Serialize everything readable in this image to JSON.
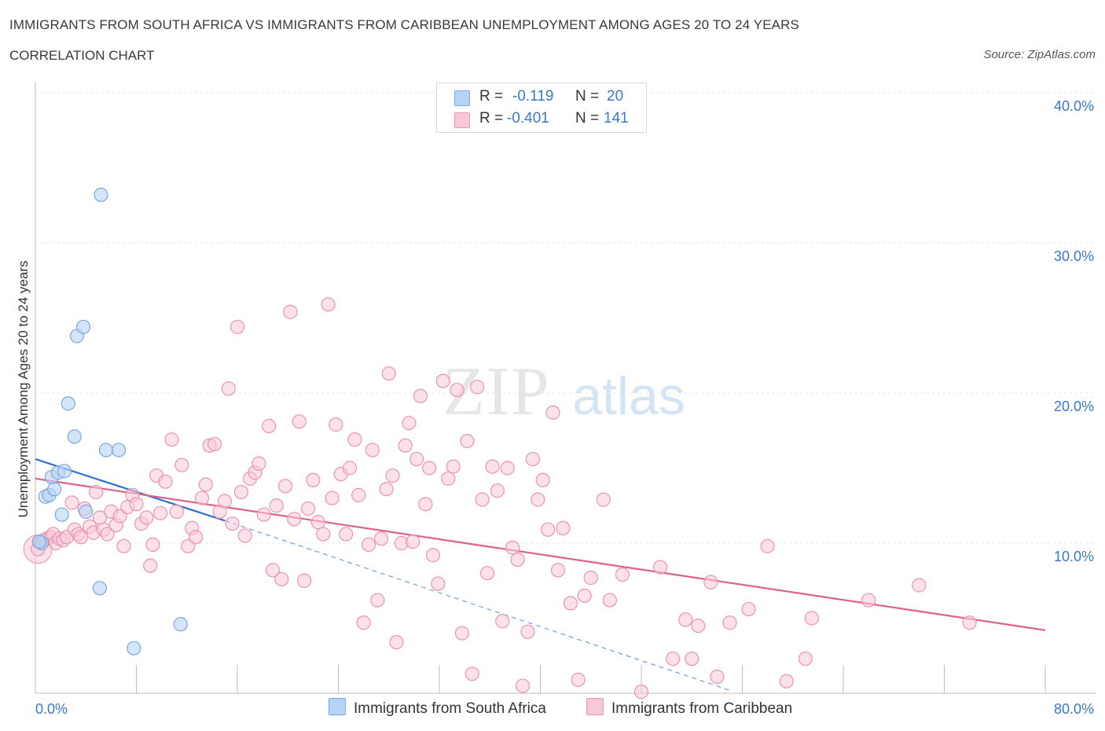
{
  "header": {
    "title": "IMMIGRANTS FROM SOUTH AFRICA VS IMMIGRANTS FROM CARIBBEAN UNEMPLOYMENT AMONG AGES 20 TO 24 YEARS",
    "subtitle": "CORRELATION CHART",
    "source": "Source: ZipAtlas.com"
  },
  "watermark": {
    "zip": "ZIP",
    "atlas": "atlas"
  },
  "legend": {
    "row1": {
      "r_label": "R =",
      "r_value": "-0.119",
      "n_label": "N =",
      "n_value": "20"
    },
    "row2": {
      "r_label": "R =",
      "r_value": "-0.401",
      "n_label": "N =",
      "n_value": "141"
    }
  },
  "bottom_legend": {
    "series1": "Immigrants from South Africa",
    "series2": "Immigrants from Caribbean"
  },
  "colors": {
    "blue_fill": "#b7d3f5",
    "blue_stroke": "#7aa8e0",
    "blue_line": "#2f6fd0",
    "pink_fill": "#f9c8d8",
    "pink_stroke": "#eb93b1",
    "pink_line": "#e0608c",
    "axis_text": "#3a78c9"
  },
  "chart_data": {
    "type": "scatter",
    "ylabel": "Unemployment Among Ages 20 to 24 years",
    "xlim": [
      0,
      80
    ],
    "ylim": [
      0,
      40
    ],
    "x_tick_labels": [
      "0.0%",
      "80.0%"
    ],
    "y_ticks": [
      10,
      20,
      30,
      40
    ],
    "y_tick_labels": [
      "10.0%",
      "20.0%",
      "30.0%",
      "40.0%"
    ],
    "grid": true,
    "series": [
      {
        "name": "Immigrants from South Africa",
        "points": [
          [
            0.5,
            10.0
          ],
          [
            0.8,
            13.1
          ],
          [
            1.1,
            13.2
          ],
          [
            1.5,
            13.6
          ],
          [
            1.3,
            14.4
          ],
          [
            1.8,
            14.7
          ],
          [
            2.1,
            11.9
          ],
          [
            2.3,
            14.8
          ],
          [
            2.6,
            19.3
          ],
          [
            3.1,
            17.1
          ],
          [
            3.3,
            23.8
          ],
          [
            3.8,
            24.4
          ],
          [
            4.0,
            12.1
          ],
          [
            5.2,
            33.2
          ],
          [
            5.6,
            16.2
          ],
          [
            6.6,
            16.2
          ],
          [
            5.1,
            7.0
          ],
          [
            7.8,
            3.0
          ],
          [
            11.5,
            4.6
          ],
          [
            0.3,
            10.1
          ]
        ],
        "trend": {
          "x": [
            0,
            15
          ],
          "y": [
            15.6,
            11.5
          ],
          "dashed_to": [
            55,
            0.2
          ]
        }
      },
      {
        "name": "Immigrants from Caribbean",
        "points": [
          [
            0.2,
            9.6
          ],
          [
            0.4,
            10.1
          ],
          [
            0.7,
            10.2
          ],
          [
            0.9,
            10.3
          ],
          [
            1.2,
            10.4
          ],
          [
            1.4,
            10.6
          ],
          [
            1.6,
            10.0
          ],
          [
            1.9,
            10.3
          ],
          [
            2.2,
            10.2
          ],
          [
            2.5,
            10.4
          ],
          [
            2.9,
            12.7
          ],
          [
            3.1,
            10.9
          ],
          [
            3.4,
            10.6
          ],
          [
            3.6,
            10.4
          ],
          [
            3.9,
            12.3
          ],
          [
            4.3,
            11.1
          ],
          [
            4.6,
            10.7
          ],
          [
            4.8,
            13.4
          ],
          [
            5.1,
            11.7
          ],
          [
            5.4,
            10.9
          ],
          [
            5.7,
            10.6
          ],
          [
            6.0,
            12.1
          ],
          [
            6.4,
            11.2
          ],
          [
            6.7,
            11.8
          ],
          [
            7.0,
            9.8
          ],
          [
            7.3,
            12.4
          ],
          [
            7.7,
            13.2
          ],
          [
            8.0,
            12.6
          ],
          [
            8.4,
            11.3
          ],
          [
            8.8,
            11.7
          ],
          [
            9.1,
            8.5
          ],
          [
            9.3,
            9.9
          ],
          [
            9.6,
            14.5
          ],
          [
            9.9,
            12.0
          ],
          [
            10.3,
            14.1
          ],
          [
            10.8,
            16.9
          ],
          [
            11.2,
            12.1
          ],
          [
            11.6,
            15.2
          ],
          [
            12.1,
            9.8
          ],
          [
            12.4,
            11.0
          ],
          [
            12.7,
            10.4
          ],
          [
            13.2,
            13.0
          ],
          [
            13.5,
            13.9
          ],
          [
            13.8,
            16.5
          ],
          [
            14.2,
            16.6
          ],
          [
            14.6,
            12.1
          ],
          [
            15.0,
            12.8
          ],
          [
            15.3,
            20.3
          ],
          [
            15.6,
            11.3
          ],
          [
            16.0,
            24.4
          ],
          [
            16.3,
            13.4
          ],
          [
            16.6,
            10.5
          ],
          [
            17.0,
            14.3
          ],
          [
            17.4,
            14.7
          ],
          [
            17.7,
            15.3
          ],
          [
            18.1,
            11.9
          ],
          [
            18.5,
            17.8
          ],
          [
            18.8,
            8.2
          ],
          [
            19.1,
            12.5
          ],
          [
            19.5,
            7.6
          ],
          [
            19.8,
            13.8
          ],
          [
            20.2,
            25.4
          ],
          [
            20.5,
            11.6
          ],
          [
            20.9,
            18.1
          ],
          [
            21.3,
            7.5
          ],
          [
            21.6,
            12.3
          ],
          [
            22.0,
            14.2
          ],
          [
            22.4,
            11.4
          ],
          [
            22.8,
            10.6
          ],
          [
            23.2,
            25.9
          ],
          [
            23.5,
            13.0
          ],
          [
            23.8,
            17.9
          ],
          [
            24.2,
            14.6
          ],
          [
            24.6,
            10.6
          ],
          [
            24.9,
            15.0
          ],
          [
            25.3,
            16.9
          ],
          [
            25.6,
            13.2
          ],
          [
            26.0,
            4.7
          ],
          [
            26.4,
            9.9
          ],
          [
            26.7,
            16.2
          ],
          [
            27.1,
            6.2
          ],
          [
            27.4,
            10.3
          ],
          [
            27.8,
            13.6
          ],
          [
            28.0,
            21.3
          ],
          [
            28.3,
            14.5
          ],
          [
            28.6,
            3.4
          ],
          [
            29.0,
            10.0
          ],
          [
            29.3,
            16.5
          ],
          [
            29.6,
            18.0
          ],
          [
            29.9,
            10.1
          ],
          [
            30.2,
            15.6
          ],
          [
            30.5,
            19.8
          ],
          [
            30.9,
            12.6
          ],
          [
            31.2,
            15.0
          ],
          [
            31.5,
            9.2
          ],
          [
            31.9,
            7.3
          ],
          [
            32.3,
            20.8
          ],
          [
            32.7,
            14.3
          ],
          [
            33.1,
            15.1
          ],
          [
            33.4,
            20.2
          ],
          [
            33.8,
            4.0
          ],
          [
            34.2,
            16.8
          ],
          [
            34.6,
            1.3
          ],
          [
            35.0,
            20.4
          ],
          [
            35.4,
            12.9
          ],
          [
            35.8,
            8.0
          ],
          [
            36.2,
            15.1
          ],
          [
            36.6,
            13.5
          ],
          [
            37.0,
            4.8
          ],
          [
            37.4,
            15.0
          ],
          [
            37.8,
            9.7
          ],
          [
            38.2,
            8.9
          ],
          [
            38.6,
            0.5
          ],
          [
            39.0,
            4.1
          ],
          [
            39.4,
            15.6
          ],
          [
            39.8,
            12.9
          ],
          [
            40.2,
            14.2
          ],
          [
            40.6,
            10.9
          ],
          [
            41.0,
            18.7
          ],
          [
            41.4,
            8.2
          ],
          [
            41.8,
            11.0
          ],
          [
            42.4,
            6.0
          ],
          [
            43.0,
            0.9
          ],
          [
            43.5,
            6.5
          ],
          [
            44.0,
            7.7
          ],
          [
            45.0,
            12.9
          ],
          [
            45.5,
            6.2
          ],
          [
            46.5,
            7.9
          ],
          [
            48.0,
            0.1
          ],
          [
            49.5,
            8.4
          ],
          [
            50.5,
            2.3
          ],
          [
            51.5,
            4.9
          ],
          [
            52.0,
            2.3
          ],
          [
            52.5,
            4.5
          ],
          [
            53.5,
            7.4
          ],
          [
            54.0,
            1.1
          ],
          [
            55.0,
            4.7
          ],
          [
            56.5,
            5.6
          ],
          [
            58.0,
            9.8
          ],
          [
            59.5,
            0.8
          ],
          [
            61.0,
            2.3
          ],
          [
            61.5,
            5.0
          ],
          [
            66.0,
            6.2
          ],
          [
            70.0,
            7.2
          ],
          [
            74.0,
            4.7
          ]
        ],
        "trend": {
          "x": [
            0,
            80
          ],
          "y": [
            14.3,
            4.2
          ]
        }
      }
    ]
  }
}
